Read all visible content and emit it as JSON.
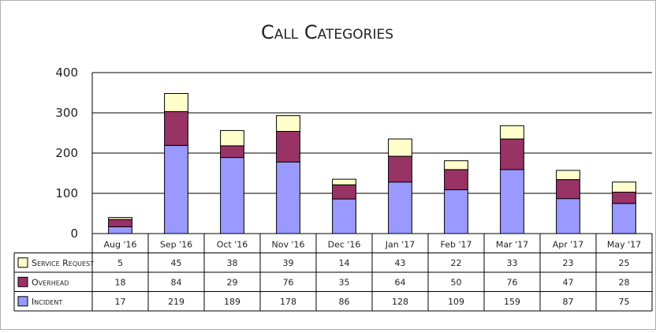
{
  "chart_data": {
    "type": "bar",
    "stacked": true,
    "title": "Call Categories",
    "xlabel": "",
    "ylabel": "",
    "ylim": [
      0,
      400
    ],
    "yticks": [
      0,
      100,
      200,
      300,
      400
    ],
    "grid": true,
    "legend": "bottom-left",
    "data_table": true,
    "categories": [
      "Aug '16",
      "Sep '16",
      "Oct '16",
      "Nov '16",
      "Dec '16",
      "Jan '17",
      "Feb '17",
      "Mar '17",
      "Apr '17",
      "May '17"
    ],
    "series": [
      {
        "name": "Incident",
        "color": "#9999ff",
        "values": [
          17,
          219,
          189,
          178,
          86,
          128,
          109,
          159,
          87,
          75
        ]
      },
      {
        "name": "Overhead",
        "color": "#993366",
        "values": [
          18,
          84,
          29,
          76,
          35,
          64,
          50,
          76,
          47,
          28
        ]
      },
      {
        "name": "Service Request",
        "color": "#ffffcc",
        "values": [
          5,
          45,
          38,
          39,
          14,
          43,
          22,
          33,
          23,
          25
        ]
      }
    ]
  }
}
